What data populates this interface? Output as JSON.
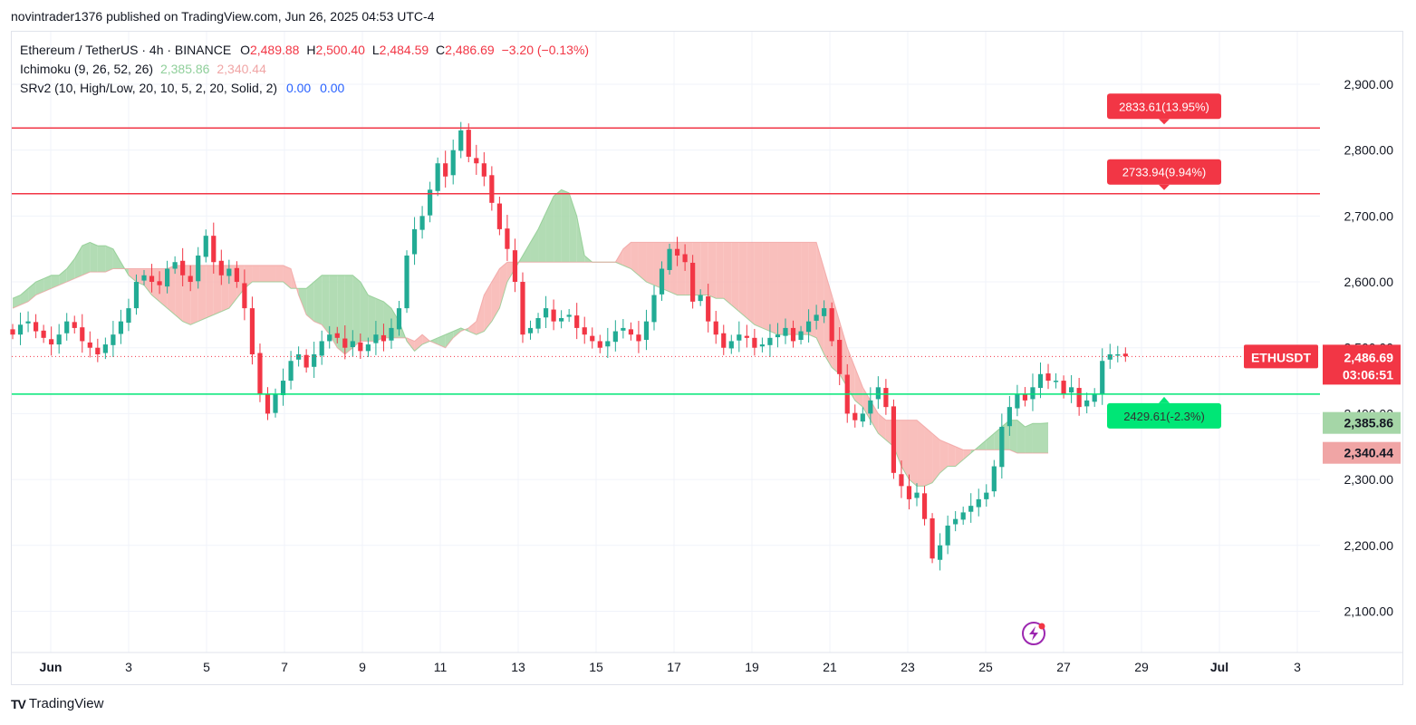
{
  "header": {
    "published_line": "novintrader1376 published on TradingView.com, Jun 26, 2025 04:53 UTC-4"
  },
  "legend": {
    "symbol": "Ethereum / TetherUS · 4h · BINANCE",
    "o_label": "O",
    "o_value": "2,489.88",
    "h_label": "H",
    "h_value": "2,500.40",
    "l_label": "L",
    "l_value": "2,484.59",
    "c_label": "C",
    "c_value": "2,486.69",
    "change": "−3.20 (−0.13%)",
    "ichimoku_name": "Ichimoku (9, 26, 52, 26)",
    "ichimoku_v1": "2,385.86",
    "ichimoku_v2": "2,340.44",
    "srv2_name": "SRv2 (10, High/Low, 20, 10, 5, 2, 20, Solid, 2)",
    "srv2_v1": "0.00",
    "srv2_v2": "0.00"
  },
  "footer": {
    "logo_text": "TV",
    "brand": "TradingView"
  },
  "colors": {
    "up": "#089981",
    "up_candle": "#22ab94",
    "down": "#f23645",
    "cloud_bull": "#a5d6a7",
    "cloud_bear": "#f8b4b0",
    "resistance": "#f23645",
    "support": "#00e676",
    "grid": "#f0f3fa",
    "axis_text": "#131722",
    "lightning": "#9c27b0"
  },
  "chart_data": {
    "type": "candlestick",
    "symbol_badge": "ETHUSDT",
    "last_price_label": "2,486.69",
    "countdown_label": "03:06:51",
    "last_price": 2486.69,
    "ylim": [
      2050,
      2975
    ],
    "y_ticks": [
      {
        "value": 2900,
        "label": "2,900.00"
      },
      {
        "value": 2800,
        "label": "2,800.00"
      },
      {
        "value": 2700,
        "label": "2,700.00"
      },
      {
        "value": 2600,
        "label": "2,600.00"
      },
      {
        "value": 2500,
        "label": "2,500.00"
      },
      {
        "value": 2400,
        "label": "2,400.00"
      },
      {
        "value": 2300,
        "label": "2,300.00"
      },
      {
        "value": 2200,
        "label": "2,200.00"
      },
      {
        "value": 2100,
        "label": "2,100.00"
      }
    ],
    "x_ticks": [
      {
        "day": 1,
        "label": "Jun",
        "bold": true
      },
      {
        "day": 3,
        "label": "3"
      },
      {
        "day": 5,
        "label": "5"
      },
      {
        "day": 7,
        "label": "7"
      },
      {
        "day": 9,
        "label": "9"
      },
      {
        "day": 11,
        "label": "11"
      },
      {
        "day": 13,
        "label": "13"
      },
      {
        "day": 15,
        "label": "15"
      },
      {
        "day": 17,
        "label": "17"
      },
      {
        "day": 19,
        "label": "19"
      },
      {
        "day": 21,
        "label": "21"
      },
      {
        "day": 23,
        "label": "23"
      },
      {
        "day": 25,
        "label": "25"
      },
      {
        "day": 27,
        "label": "27"
      },
      {
        "day": 29,
        "label": "29"
      },
      {
        "day": 31,
        "label": "Jul",
        "bold": true
      },
      {
        "day": 33,
        "label": "3"
      }
    ],
    "levels": [
      {
        "price": 2833.61,
        "label": "2833.61(13.95%)",
        "color": "#f23645",
        "arrow": "down"
      },
      {
        "price": 2733.94,
        "label": "2733.94(9.94%)",
        "color": "#f23645",
        "arrow": "down"
      },
      {
        "price": 2429.61,
        "label": "2429.61(-2.3%)",
        "color": "#00e676",
        "arrow": "up"
      }
    ],
    "ichimoku_labels": [
      {
        "value": 2385.86,
        "label": "2,385.86",
        "color": "#a5d6a7"
      },
      {
        "value": 2340.44,
        "label": "2,340.44",
        "color": "#f0a5a5"
      }
    ],
    "candle_closes": [
      2520,
      2535,
      2540,
      2525,
      2515,
      2505,
      2520,
      2540,
      2530,
      2510,
      2500,
      2490,
      2505,
      2520,
      2540,
      2560,
      2600,
      2610,
      2600,
      2595,
      2620,
      2630,
      2610,
      2600,
      2640,
      2670,
      2630,
      2610,
      2620,
      2600,
      2560,
      2490,
      2430,
      2400,
      2430,
      2450,
      2480,
      2490,
      2470,
      2490,
      2510,
      2520,
      2515,
      2500,
      2510,
      2495,
      2505,
      2520,
      2510,
      2530,
      2560,
      2640,
      2680,
      2700,
      2740,
      2780,
      2760,
      2800,
      2830,
      2790,
      2780,
      2760,
      2720,
      2680,
      2650,
      2600,
      2520,
      2530,
      2545,
      2560,
      2540,
      2545,
      2550,
      2530,
      2520,
      2510,
      2500,
      2510,
      2525,
      2530,
      2520,
      2510,
      2540,
      2580,
      2620,
      2650,
      2640,
      2630,
      2570,
      2580,
      2540,
      2520,
      2500,
      2510,
      2520,
      2515,
      2500,
      2505,
      2515,
      2520,
      2530,
      2510,
      2525,
      2540,
      2550,
      2560,
      2510,
      2460,
      2400,
      2390,
      2400,
      2420,
      2440,
      2410,
      2310,
      2290,
      2270,
      2280,
      2240,
      2180,
      2200,
      2230,
      2240,
      2250,
      2260,
      2270,
      2280,
      2320,
      2380,
      2410,
      2430,
      2420,
      2440,
      2460,
      2450,
      2450,
      2430,
      2440,
      2410,
      2420,
      2430,
      2480,
      2490,
      2490,
      2487
    ],
    "cloud": {
      "start_index": 0,
      "span_a": [
        2575,
        2580,
        2590,
        2600,
        2605,
        2610,
        2610,
        2620,
        2635,
        2655,
        2660,
        2655,
        2655,
        2650,
        2630,
        2610,
        2600,
        2595,
        2580,
        2570,
        2560,
        2550,
        2540,
        2535,
        2540,
        2545,
        2550,
        2555,
        2560,
        2575,
        2590,
        2600,
        2600,
        2600,
        2600,
        2600,
        2590,
        2590,
        2590,
        2600,
        2610,
        2610,
        2610,
        2610,
        2610,
        2600,
        2580,
        2575,
        2570,
        2560,
        2540,
        2510,
        2495,
        2505,
        2510,
        2515,
        2520,
        2525,
        2530,
        2525,
        2520,
        2525,
        2540,
        2560,
        2600,
        2620,
        2640,
        2660,
        2680,
        2705,
        2730,
        2740,
        2735,
        2700,
        2640,
        2630,
        2630,
        2630,
        2630,
        2625,
        2620,
        2610,
        2600,
        2595,
        2590,
        2585,
        2580,
        2580,
        2580,
        2580,
        2580,
        2575,
        2575,
        2565,
        2555,
        2545,
        2535,
        2530,
        2525,
        2520,
        2520,
        2520,
        2520,
        2520,
        2515,
        2490,
        2470,
        2460,
        2440,
        2420,
        2410,
        2390,
        2370,
        2360,
        2350,
        2320,
        2300,
        2290,
        2290,
        2295,
        2310,
        2320,
        2320,
        2330,
        2340,
        2350,
        2360,
        2370,
        2380,
        2390,
        2390,
        2380,
        2385,
        2385,
        2386
      ],
      "span_b": [
        2560,
        2565,
        2570,
        2580,
        2585,
        2590,
        2595,
        2600,
        2605,
        2610,
        2615,
        2615,
        2615,
        2620,
        2620,
        2620,
        2620,
        2620,
        2620,
        2620,
        2620,
        2625,
        2625,
        2625,
        2625,
        2625,
        2625,
        2625,
        2625,
        2625,
        2625,
        2625,
        2625,
        2625,
        2625,
        2625,
        2620,
        2580,
        2550,
        2540,
        2535,
        2520,
        2500,
        2490,
        2500,
        2510,
        2510,
        2510,
        2515,
        2515,
        2515,
        2515,
        2510,
        2520,
        2510,
        2505,
        2500,
        2515,
        2525,
        2530,
        2540,
        2580,
        2600,
        2620,
        2630,
        2630,
        2630,
        2630,
        2630,
        2630,
        2630,
        2630,
        2630,
        2630,
        2630,
        2630,
        2630,
        2630,
        2630,
        2650,
        2660,
        2660,
        2660,
        2660,
        2660,
        2660,
        2660,
        2660,
        2660,
        2660,
        2660,
        2660,
        2660,
        2660,
        2660,
        2660,
        2660,
        2660,
        2660,
        2660,
        2660,
        2660,
        2660,
        2660,
        2660,
        2620,
        2580,
        2540,
        2500,
        2470,
        2440,
        2420,
        2400,
        2390,
        2390,
        2390,
        2390,
        2390,
        2380,
        2370,
        2360,
        2355,
        2350,
        2345,
        2345,
        2345,
        2345,
        2345,
        2345,
        2345,
        2340,
        2340,
        2340,
        2340,
        2340
      ]
    }
  }
}
